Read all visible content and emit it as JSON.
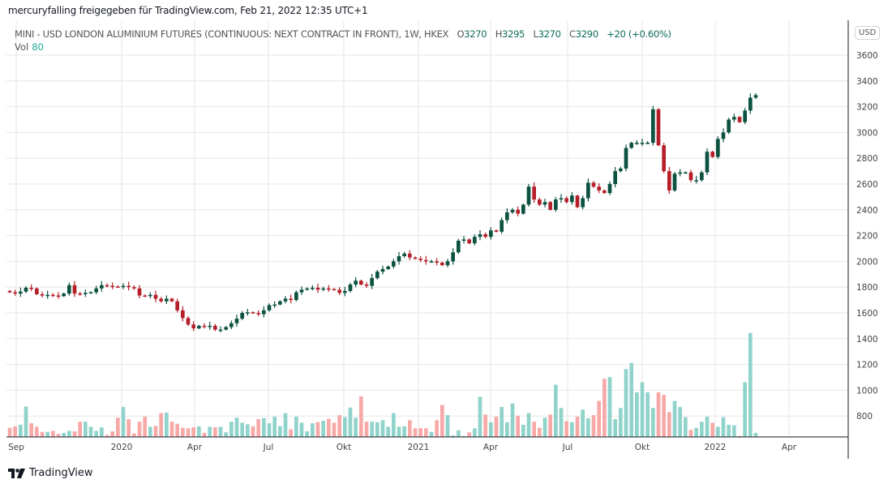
{
  "header": {
    "attribution": "mercuryfalling freigegeben für TradingView.com, Feb 21, 2022 12:35 UTC+1"
  },
  "legend": {
    "symbol": "MINI - USD LONDON ALUMINIUM FUTURES (CONTINUOUS: NEXT CONTRACT IN FRONT), 1W, HKEX",
    "o_label": "O",
    "o": "3270",
    "h_label": "H",
    "h": "3295",
    "l_label": "L",
    "l": "3270",
    "c_label": "C",
    "c": "3290",
    "change": "+20 (+0.60%)",
    "vol_label": "Vol",
    "vol": "80"
  },
  "currency_button": "USD",
  "footer": {
    "brand": "TradingView"
  },
  "colors": {
    "up": "#0b5240",
    "down": "#b51f2a",
    "vol_up": "#8fd3ca",
    "vol_down": "#f7a9a7",
    "grid": "#e6e6e6"
  },
  "chart_data": {
    "type": "candlestick",
    "interval": "1W",
    "ylim": [
      700,
      3800
    ],
    "yticks": [
      800,
      1000,
      1200,
      1400,
      1600,
      1800,
      2000,
      2200,
      2400,
      2600,
      2800,
      3000,
      3200,
      3400,
      3600
    ],
    "xticks": [
      "Sep",
      "2020",
      "Apr",
      "Jul",
      "Okt",
      "2021",
      "Apr",
      "Jul",
      "Okt",
      "2022",
      "Apr"
    ],
    "first_open": 1770,
    "close": [
      1760,
      1750,
      1765,
      1795,
      1790,
      1745,
      1735,
      1740,
      1735,
      1730,
      1750,
      1815,
      1750,
      1745,
      1755,
      1760,
      1790,
      1815,
      1810,
      1805,
      1800,
      1810,
      1800,
      1790,
      1735,
      1730,
      1740,
      1710,
      1690,
      1710,
      1690,
      1620,
      1560,
      1510,
      1480,
      1500,
      1495,
      1500,
      1470,
      1470,
      1490,
      1520,
      1555,
      1600,
      1605,
      1600,
      1590,
      1620,
      1660,
      1665,
      1690,
      1710,
      1700,
      1760,
      1780,
      1790,
      1795,
      1780,
      1790,
      1785,
      1780,
      1755,
      1770,
      1820,
      1850,
      1820,
      1810,
      1870,
      1920,
      1940,
      1960,
      2000,
      2040,
      2060,
      2030,
      2020,
      2010,
      2000,
      2000,
      1990,
      1970,
      2000,
      2070,
      2160,
      2170,
      2140,
      2190,
      2210,
      2190,
      2240,
      2230,
      2320,
      2380,
      2400,
      2370,
      2440,
      2580,
      2480,
      2440,
      2460,
      2400,
      2480,
      2490,
      2460,
      2510,
      2420,
      2490,
      2610,
      2580,
      2550,
      2530,
      2600,
      2700,
      2720,
      2880,
      2920,
      2920,
      2920,
      2920,
      3180,
      2900,
      2700,
      2550,
      2680,
      2690,
      2690,
      2630,
      2630,
      2690,
      2850,
      2810,
      2950,
      3000,
      3100,
      3120,
      3080,
      3170,
      3270,
      3290
    ],
    "volume": [
      180,
      210,
      240,
      600,
      270,
      200,
      100,
      100,
      120,
      60,
      80,
      120,
      110,
      300,
      300,
      200,
      120,
      190,
      40,
      110,
      380,
      590,
      350,
      70,
      300,
      400,
      200,
      220,
      470,
      480,
      300,
      260,
      180,
      170,
      190,
      210,
      80,
      200,
      190,
      200,
      90,
      300,
      380,
      280,
      250,
      210,
      350,
      370,
      270,
      400,
      210,
      470,
      150,
      400,
      280,
      110,
      270,
      290,
      320,
      360,
      280,
      430,
      390,
      580,
      380,
      800,
      300,
      300,
      290,
      330,
      200,
      470,
      200,
      210,
      330,
      170,
      170,
      170,
      100,
      330,
      630,
      430,
      30,
      130,
      20,
      90,
      170,
      790,
      440,
      290,
      400,
      590,
      290,
      660,
      420,
      240,
      470,
      300,
      180,
      380,
      440,
      1030,
      570,
      310,
      290,
      400,
      540,
      370,
      430,
      710,
      1150,
      1180,
      350,
      570,
      1340,
      1460,
      880,
      1080,
      880,
      570,
      880,
      830,
      490,
      710,
      590,
      390,
      140,
      180,
      300,
      400,
      280,
      200,
      390,
      240,
      230,
      20,
      1080,
      2050,
      80
    ]
  }
}
